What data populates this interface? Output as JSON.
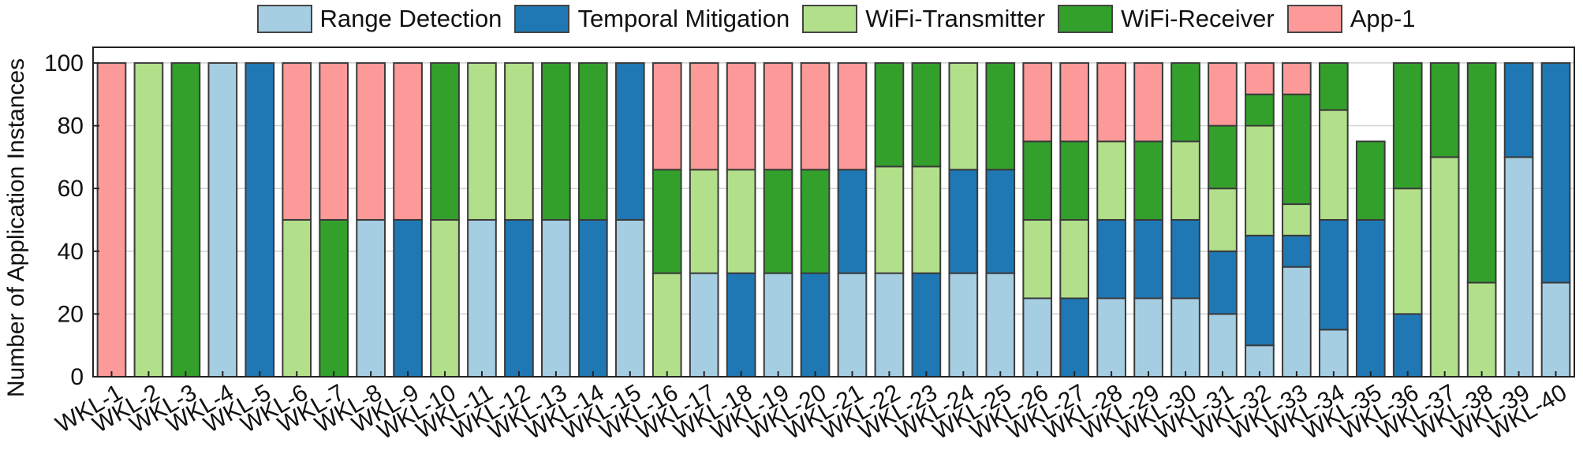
{
  "chart_data": {
    "type": "bar",
    "stacked": true,
    "title": "",
    "xlabel": "",
    "ylabel": "Number of Application Instances",
    "ylim": [
      0,
      100
    ],
    "yticks": [
      0,
      20,
      40,
      60,
      80,
      100
    ],
    "grid": true,
    "legend_position": "top",
    "categories": [
      "WKL-1",
      "WKL-2",
      "WKL-3",
      "WKL-4",
      "WKL-5",
      "WKL-6",
      "WKL-7",
      "WKL-8",
      "WKL-9",
      "WKL-10",
      "WKL-11",
      "WKL-12",
      "WKL-13",
      "WKL-14",
      "WKL-15",
      "WKL-16",
      "WKL-17",
      "WKL-18",
      "WKL-19",
      "WKL-20",
      "WKL-21",
      "WKL-22",
      "WKL-23",
      "WKL-24",
      "WKL-25",
      "WKL-26",
      "WKL-27",
      "WKL-28",
      "WKL-29",
      "WKL-30",
      "WKL-31",
      "WKL-32",
      "WKL-33",
      "WKL-34",
      "WKL-35",
      "WKL-36",
      "WKL-37",
      "WKL-38",
      "WKL-39",
      "WKL-40"
    ],
    "series": [
      {
        "name": "Range Detection",
        "color": "#a6cee3",
        "values": [
          0,
          0,
          0,
          100,
          0,
          0,
          0,
          50,
          0,
          0,
          50,
          0,
          50,
          0,
          50,
          0,
          33,
          0,
          33,
          0,
          33,
          33,
          0,
          33,
          33,
          25,
          0,
          25,
          25,
          25,
          20,
          10,
          35,
          15,
          0,
          0,
          0,
          0,
          70,
          30
        ]
      },
      {
        "name": "Temporal Mitigation",
        "color": "#1f78b4",
        "values": [
          0,
          0,
          0,
          0,
          100,
          0,
          0,
          0,
          50,
          0,
          0,
          50,
          0,
          50,
          50,
          0,
          0,
          33,
          0,
          33,
          33,
          0,
          33,
          33,
          33,
          0,
          25,
          25,
          25,
          25,
          20,
          35,
          10,
          35,
          50,
          20,
          0,
          0,
          30,
          70
        ]
      },
      {
        "name": "WiFi-Transmitter",
        "color": "#b2df8a",
        "values": [
          0,
          100,
          0,
          0,
          0,
          50,
          0,
          0,
          0,
          50,
          50,
          50,
          0,
          0,
          0,
          33,
          33,
          33,
          0,
          0,
          0,
          34,
          34,
          34,
          0,
          25,
          25,
          25,
          0,
          25,
          20,
          35,
          10,
          35,
          0,
          40,
          70,
          30,
          0,
          0
        ]
      },
      {
        "name": "WiFi-Receiver",
        "color": "#33a02c",
        "values": [
          0,
          0,
          100,
          0,
          0,
          0,
          50,
          0,
          0,
          50,
          0,
          0,
          50,
          50,
          0,
          33,
          0,
          0,
          33,
          33,
          0,
          33,
          33,
          0,
          34,
          25,
          25,
          0,
          25,
          25,
          20,
          10,
          35,
          15,
          25,
          40,
          30,
          70,
          0,
          0
        ]
      },
      {
        "name": "App-1",
        "color": "#fb9a99",
        "values": [
          100,
          0,
          0,
          0,
          0,
          50,
          50,
          50,
          50,
          0,
          0,
          0,
          0,
          0,
          0,
          34,
          34,
          34,
          34,
          34,
          34,
          0,
          0,
          0,
          0,
          25,
          25,
          25,
          25,
          0,
          20,
          10,
          10,
          0,
          0,
          0,
          0,
          0,
          0,
          0
        ]
      }
    ]
  }
}
